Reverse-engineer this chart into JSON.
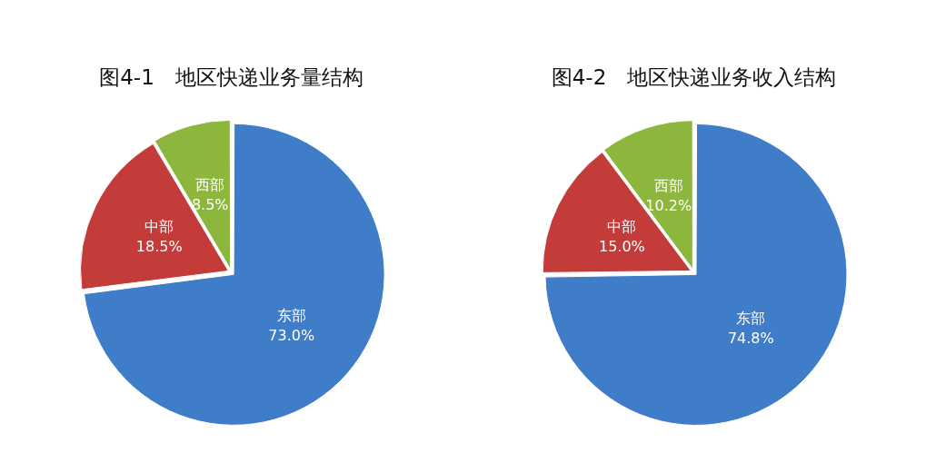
{
  "chart_data": [
    {
      "type": "pie",
      "title": "图4-1　地区快递业务量结构",
      "categories": [
        "东部",
        "中部",
        "西部"
      ],
      "values": [
        73.0,
        18.5,
        8.5
      ],
      "colors": [
        "#3f7dc9",
        "#c43c39",
        "#8db63c"
      ],
      "value_labels": [
        "73.0%",
        "18.5%",
        "8.5%"
      ],
      "legend": false
    },
    {
      "type": "pie",
      "title": "图4-2　地区快递业务收入结构",
      "categories": [
        "东部",
        "中部",
        "西部"
      ],
      "values": [
        74.8,
        15.0,
        10.2
      ],
      "colors": [
        "#3f7dc9",
        "#c43c39",
        "#8db63c"
      ],
      "value_labels": [
        "74.8%",
        "15.0%",
        "10.2%"
      ],
      "legend": false
    }
  ]
}
